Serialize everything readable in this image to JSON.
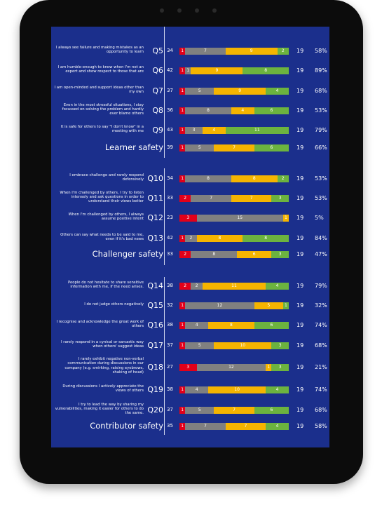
{
  "sections": [
    {
      "rows": [
        {
          "statement": "I always see failure and making mistakes as an opportunity to learn",
          "question": "Q5",
          "score": 34,
          "segments": [
            1,
            7,
            9,
            2
          ],
          "count": 19,
          "percent": "58%"
        },
        {
          "statement": "I am humble-enough to know when I'm not an expert and show respect to those that are",
          "question": "Q6",
          "score": 42,
          "segments": [
            1,
            1,
            9,
            8
          ],
          "count": 19,
          "percent": "89%"
        },
        {
          "statement": "I am open-minded and support ideas other than my own",
          "question": "Q7",
          "score": 37,
          "segments": [
            1,
            5,
            9,
            4
          ],
          "count": 19,
          "percent": "68%"
        },
        {
          "statement": "Even in the most stressful situations, I stay focussed on solving the problem and hardly ever blame others",
          "question": "Q8",
          "score": 36,
          "segments": [
            1,
            8,
            4,
            6
          ],
          "count": 19,
          "percent": "53%"
        },
        {
          "statement": "It is safe for others to say \"I don't know\" in a meeting with me",
          "question": "Q9",
          "score": 43,
          "segments": [
            1,
            3,
            4,
            11
          ],
          "count": 19,
          "percent": "79%"
        }
      ],
      "summary": {
        "label": "Learner safety",
        "score": 39,
        "segments": [
          1,
          5,
          7,
          6
        ],
        "count": 19,
        "percent": "66%"
      }
    },
    {
      "rows": [
        {
          "statement": "I embrace challenge and rarely respond defensively",
          "question": "Q10",
          "score": 34,
          "segments": [
            1,
            8,
            8,
            2
          ],
          "count": 19,
          "percent": "53%"
        },
        {
          "statement": "When I'm challenged by others, I try to listen intensely and ask questions in order to understand their views better",
          "question": "Q11",
          "score": 33,
          "segments": [
            2,
            7,
            7,
            3
          ],
          "count": 19,
          "percent": "53%"
        },
        {
          "statement": "When I'm challenged by others, I always assume positive intent",
          "question": "Q12",
          "score": 23,
          "segments": [
            3,
            15,
            1,
            0
          ],
          "count": 19,
          "percent": "5%"
        },
        {
          "statement": "Others can say what needs to be said to me, even if it's bad news",
          "question": "Q13",
          "score": 42,
          "segments": [
            1,
            2,
            8,
            8
          ],
          "count": 19,
          "percent": "84%"
        }
      ],
      "summary": {
        "label": "Challenger safety",
        "score": 33,
        "segments": [
          2,
          8,
          6,
          3
        ],
        "count": 19,
        "percent": "47%"
      }
    },
    {
      "rows": [
        {
          "statement": "People do not hesitate to share sensitive information with me, if the need arises.",
          "question": "Q14",
          "score": 38,
          "segments": [
            2,
            2,
            11,
            4
          ],
          "count": 19,
          "percent": "79%"
        },
        {
          "statement": "I do not judge others negatively",
          "question": "Q15",
          "score": 32,
          "segments": [
            1,
            12,
            5,
            1
          ],
          "count": 19,
          "percent": "32%"
        },
        {
          "statement": "I recognise and acknowledge the great work of others",
          "question": "Q16",
          "score": 38,
          "segments": [
            1,
            4,
            8,
            6
          ],
          "count": 19,
          "percent": "74%"
        },
        {
          "statement": "I rarely respond in a cynical or sarcastic way when others' suggest ideas",
          "question": "Q17",
          "score": 37,
          "segments": [
            1,
            5,
            10,
            3
          ],
          "count": 19,
          "percent": "68%"
        },
        {
          "statement": "I rarely exhibit negative non-verbal communication during discussions in our company (e.g. smirking, raising eyebrows, shaking of head)",
          "question": "Q18",
          "score": 27,
          "segments": [
            3,
            12,
            1,
            3
          ],
          "count": 19,
          "percent": "21%"
        },
        {
          "statement": "During discussions I actively appreciate the views of others",
          "question": "Q19",
          "score": 38,
          "segments": [
            1,
            4,
            10,
            4
          ],
          "count": 19,
          "percent": "74%"
        },
        {
          "statement": "I try to lead the way by sharing my vulnerabilities, making it easier for others to do the same.",
          "question": "Q20",
          "score": 37,
          "segments": [
            1,
            5,
            7,
            6
          ],
          "count": 19,
          "percent": "68%"
        }
      ],
      "summary": {
        "label": "Contributor safety",
        "score": 35,
        "segments": [
          1,
          7,
          7,
          4
        ],
        "count": 19,
        "percent": "58%"
      }
    }
  ]
}
